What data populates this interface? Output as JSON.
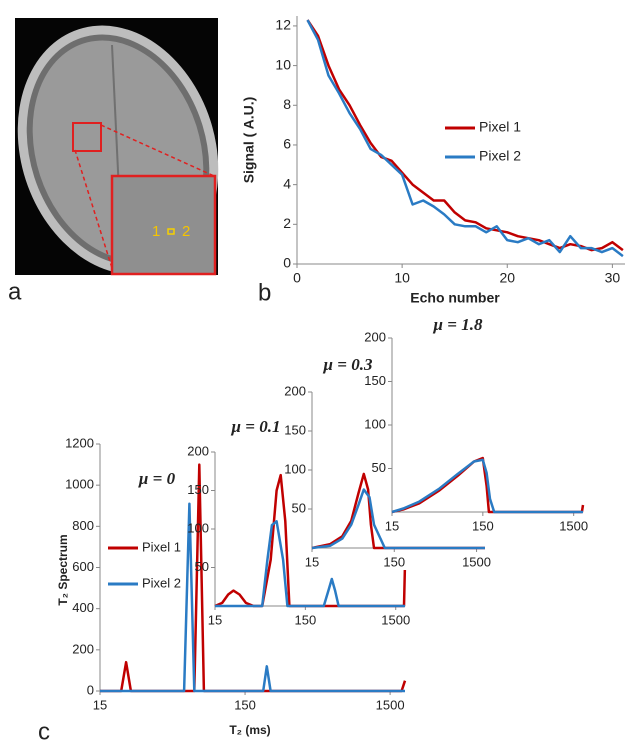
{
  "panel_labels": [
    "a",
    "b",
    "c"
  ],
  "image": {
    "labels": [
      "1",
      "2"
    ]
  },
  "chart_data": [
    {
      "type": "line",
      "x_label": "Echo number",
      "y_label": "Signal ( A.U.)",
      "x": [
        1,
        2,
        3,
        4,
        5,
        6,
        7,
        8,
        9,
        10,
        11,
        12,
        13,
        14,
        15,
        16,
        17,
        18,
        19,
        20,
        21,
        22,
        23,
        24,
        25,
        26,
        27,
        28,
        29,
        30,
        31
      ],
      "xlim": [
        0,
        31.2
      ],
      "xticks": [
        0,
        10,
        20,
        30
      ],
      "ylim": [
        0,
        12.5
      ],
      "yticks": [
        0,
        2,
        4,
        6,
        8,
        10,
        12
      ],
      "legend": "right",
      "series": [
        {
          "name": "Pixel 1",
          "color": "#c00000",
          "values": [
            12.3,
            11.5,
            10.0,
            8.8,
            8.0,
            7.0,
            6.1,
            5.4,
            5.2,
            4.6,
            4.0,
            3.6,
            3.2,
            3.2,
            2.6,
            2.2,
            2.1,
            1.8,
            1.7,
            1.6,
            1.4,
            1.3,
            1.2,
            1.0,
            0.8,
            1.0,
            0.9,
            0.7,
            0.8,
            1.1,
            0.7
          ]
        },
        {
          "name": "Pixel 2",
          "color": "#2a7bc4",
          "values": [
            12.3,
            11.3,
            9.5,
            8.6,
            7.6,
            6.8,
            5.8,
            5.5,
            5.0,
            4.5,
            3.0,
            3.2,
            2.9,
            2.5,
            2.0,
            1.9,
            1.9,
            1.6,
            1.9,
            1.2,
            1.1,
            1.3,
            1.0,
            1.2,
            0.6,
            1.4,
            0.8,
            0.8,
            0.6,
            0.8,
            0.4
          ]
        }
      ]
    },
    {
      "type": "line",
      "title": "μ = 0",
      "x_label": "T₂ (ms)",
      "y_label": "T₂ Spectrum",
      "x_scale": "log",
      "xlim": [
        15,
        1900
      ],
      "xticks": [
        15,
        150,
        1500
      ],
      "ylim": [
        0,
        1200
      ],
      "yticks": [
        0,
        200,
        400,
        600,
        800,
        1000,
        1200
      ],
      "legend": "left",
      "series": [
        {
          "name": "Pixel 1",
          "color": "#c00000",
          "x": [
            15,
            21,
            22.7,
            24.5,
            67,
            72.6,
            78,
            1800,
            1900
          ],
          "values": [
            0,
            0,
            140,
            0,
            0,
            1100,
            0,
            0,
            50
          ]
        },
        {
          "name": "Pixel 2",
          "color": "#2a7bc4",
          "x": [
            15,
            57,
            62,
            67,
            200,
            212,
            225,
            1900
          ],
          "values": [
            0,
            0,
            910,
            0,
            0,
            120,
            0,
            0
          ]
        }
      ]
    },
    {
      "type": "line",
      "title": "μ = 0.1",
      "x_scale": "log",
      "xlim": [
        15,
        1900
      ],
      "xticks": [
        15,
        150,
        1500
      ],
      "ylim": [
        0,
        200
      ],
      "yticks": [
        50,
        100,
        150,
        200
      ],
      "series": [
        {
          "color": "#c00000",
          "x": [
            15,
            18,
            21,
            24,
            28,
            33,
            40,
            50,
            62,
            72,
            80,
            90,
            100,
            1800,
            1850,
            1900
          ],
          "values": [
            0,
            4,
            15,
            20,
            15,
            4,
            0,
            0,
            60,
            150,
            170,
            110,
            0,
            0,
            0,
            55
          ]
        },
        {
          "color": "#2a7bc4",
          "x": [
            15,
            50,
            57,
            64,
            72,
            85,
            95,
            240,
            270,
            294,
            320,
            350,
            1900
          ],
          "values": [
            0,
            0,
            60,
            105,
            110,
            60,
            0,
            0,
            20,
            35,
            20,
            0,
            0
          ]
        }
      ]
    },
    {
      "type": "line",
      "title": "μ = 0.3",
      "x_scale": "log",
      "xlim": [
        15,
        1900
      ],
      "xticks": [
        15,
        150,
        1500
      ],
      "ylim": [
        0,
        200
      ],
      "yticks": [
        50,
        100,
        150,
        200
      ],
      "series": [
        {
          "color": "#c00000",
          "x": [
            15,
            25,
            35,
            45,
            55,
            64,
            72,
            78,
            85,
            1900
          ],
          "values": [
            0,
            5,
            15,
            35,
            70,
            95,
            75,
            30,
            0,
            0
          ]
        },
        {
          "color": "#2a7bc4",
          "x": [
            15,
            25,
            35,
            45,
            55,
            64,
            75,
            85,
            115,
            1900
          ],
          "values": [
            0,
            3,
            12,
            30,
            55,
            75,
            65,
            30,
            0,
            0
          ]
        }
      ]
    },
    {
      "type": "line",
      "title": "μ = 1.8",
      "x_scale": "log",
      "xlim": [
        15,
        1900
      ],
      "xticks": [
        15,
        150,
        1500
      ],
      "ylim": [
        0,
        200
      ],
      "yticks": [
        50,
        100,
        150,
        200
      ],
      "series": [
        {
          "color": "#c00000",
          "x": [
            15,
            20,
            30,
            50,
            80,
            120,
            150,
            165,
            175,
            1850,
            1900
          ],
          "values": [
            0,
            3,
            10,
            25,
            42,
            58,
            62,
            30,
            0,
            0,
            8
          ]
        },
        {
          "color": "#2a7bc4",
          "x": [
            15,
            20,
            30,
            50,
            80,
            120,
            150,
            165,
            180,
            200,
            1900
          ],
          "values": [
            0,
            4,
            12,
            27,
            44,
            58,
            60,
            45,
            15,
            0,
            0
          ]
        }
      ]
    }
  ]
}
